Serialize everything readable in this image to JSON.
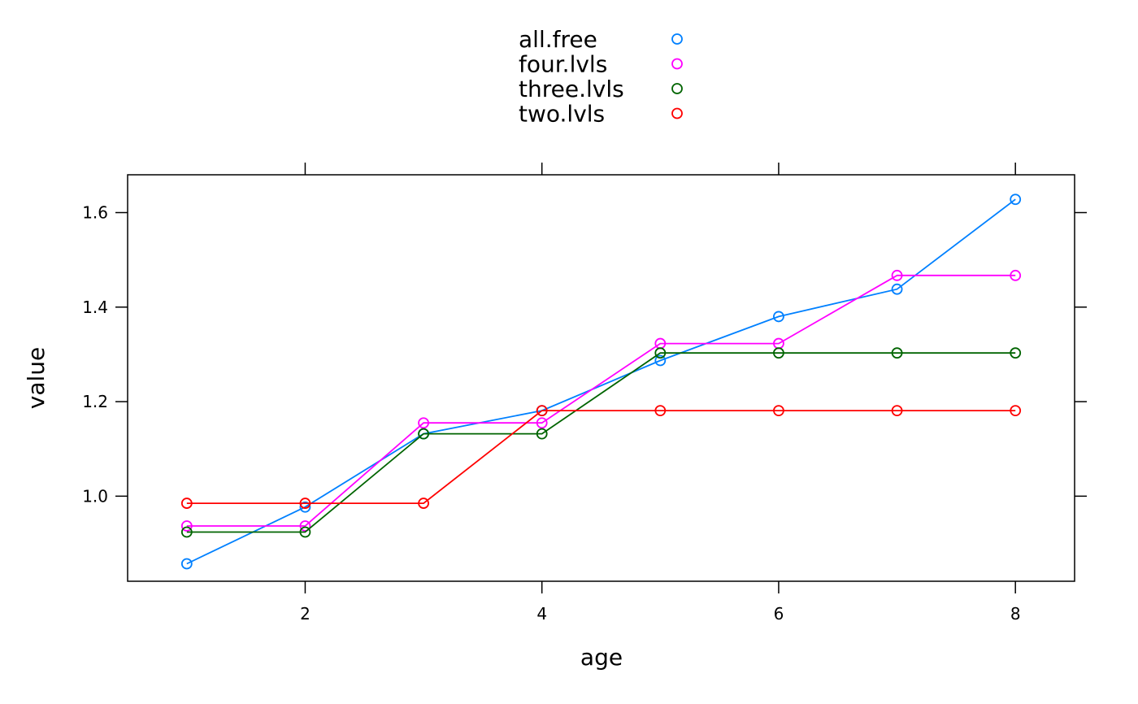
{
  "chart_data": {
    "type": "line",
    "xlabel": "age",
    "ylabel": "value",
    "x": [
      1,
      2,
      3,
      4,
      5,
      6,
      7,
      8
    ],
    "xlim": [
      0.5,
      8.5
    ],
    "ylim": [
      0.82,
      1.68
    ],
    "xticks": [
      2,
      4,
      6,
      8
    ],
    "yticks": [
      1.0,
      1.2,
      1.4,
      1.6
    ],
    "xtick_labels": [
      "2",
      "4",
      "6",
      "8"
    ],
    "ytick_labels": [
      "1.0",
      "1.2",
      "1.4",
      "1.6"
    ],
    "grid": false,
    "legend_position": "top-center",
    "marker": "open-circle",
    "series": [
      {
        "name": "all.free",
        "color": "#0080ff",
        "values": [
          0.857,
          0.977,
          1.132,
          1.181,
          1.287,
          1.38,
          1.438,
          1.628
        ]
      },
      {
        "name": "four.lvls",
        "color": "#ff00ff",
        "values": [
          0.937,
          0.937,
          1.155,
          1.155,
          1.323,
          1.323,
          1.467,
          1.467
        ]
      },
      {
        "name": "three.lvls",
        "color": "#006400",
        "values": [
          0.924,
          0.924,
          1.132,
          1.132,
          1.303,
          1.303,
          1.303,
          1.303
        ]
      },
      {
        "name": "two.lvls",
        "color": "#ff0000",
        "values": [
          0.985,
          0.985,
          0.985,
          1.181,
          1.181,
          1.181,
          1.181,
          1.181
        ]
      }
    ]
  }
}
